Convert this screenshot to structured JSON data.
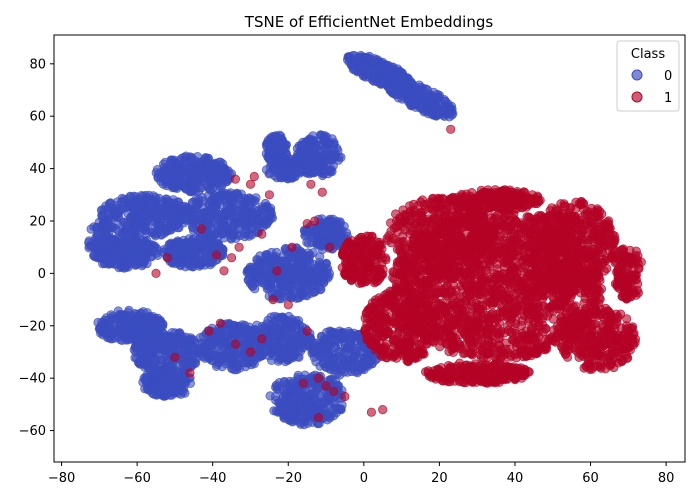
{
  "chart_data": {
    "type": "scatter",
    "title": "TSNE of EfficientNet Embeddings",
    "xlabel": "",
    "ylabel": "",
    "xlim": [
      -82,
      85
    ],
    "ylim": [
      -72,
      91
    ],
    "xticks": [
      -80,
      -60,
      -40,
      -20,
      0,
      20,
      40,
      60,
      80
    ],
    "yticks": [
      -60,
      -40,
      -20,
      0,
      20,
      40,
      60,
      80
    ],
    "grid": false,
    "legend": {
      "title": "Class",
      "placement": "top-right"
    },
    "series": [
      {
        "name": "0",
        "color": "#3b4cc0",
        "clusters": [
          {
            "cx": 4,
            "cy": 77,
            "rx": 10,
            "ry": 4,
            "angle": -35,
            "n": 260
          },
          {
            "cx": 15,
            "cy": 67,
            "rx": 11,
            "ry": 4,
            "angle": -38,
            "n": 220
          },
          {
            "cx": -45,
            "cy": 38,
            "rx": 10,
            "ry": 7,
            "angle": 0,
            "n": 260
          },
          {
            "cx": -58,
            "cy": 22,
            "rx": 12,
            "ry": 8,
            "angle": 0,
            "n": 300
          },
          {
            "cx": -36,
            "cy": 22,
            "rx": 12,
            "ry": 9,
            "angle": 0,
            "n": 320
          },
          {
            "cx": -63,
            "cy": 8,
            "rx": 9,
            "ry": 6,
            "angle": 0,
            "n": 220
          },
          {
            "cx": -45,
            "cy": 8,
            "rx": 8,
            "ry": 6,
            "angle": 0,
            "n": 200
          },
          {
            "cx": -23,
            "cy": 47,
            "rx": 3,
            "ry": 6,
            "angle": 0,
            "n": 90
          },
          {
            "cx": -12,
            "cy": 45,
            "rx": 6,
            "ry": 8,
            "angle": 0,
            "n": 180
          },
          {
            "cx": -21,
            "cy": 40,
            "rx": 5,
            "ry": 4,
            "angle": 0,
            "n": 90
          },
          {
            "cx": -20,
            "cy": 0,
            "rx": 11,
            "ry": 10,
            "angle": 0,
            "n": 340
          },
          {
            "cx": -10,
            "cy": 15,
            "rx": 6,
            "ry": 6,
            "angle": 0,
            "n": 140
          },
          {
            "cx": -62,
            "cy": -20,
            "rx": 9,
            "ry": 6,
            "angle": 0,
            "n": 220
          },
          {
            "cx": -52,
            "cy": -30,
            "rx": 9,
            "ry": 8,
            "angle": 0,
            "n": 240
          },
          {
            "cx": -52,
            "cy": -42,
            "rx": 7,
            "ry": 5,
            "angle": 0,
            "n": 160
          },
          {
            "cx": -35,
            "cy": -28,
            "rx": 9,
            "ry": 9,
            "angle": 0,
            "n": 260
          },
          {
            "cx": -22,
            "cy": -25,
            "rx": 8,
            "ry": 9,
            "angle": 0,
            "n": 240
          },
          {
            "cx": -15,
            "cy": -48,
            "rx": 10,
            "ry": 10,
            "angle": 0,
            "n": 280
          },
          {
            "cx": -5,
            "cy": -30,
            "rx": 9,
            "ry": 9,
            "angle": 0,
            "n": 240
          },
          {
            "cx": -70,
            "cy": 12,
            "rx": 3,
            "ry": 8,
            "angle": 0,
            "n": 60
          }
        ]
      },
      {
        "name": "1",
        "color": "#b40426",
        "clusters": [
          {
            "cx": 35,
            "cy": -5,
            "rx": 28,
            "ry": 28,
            "angle": 0,
            "n": 1800
          },
          {
            "cx": 20,
            "cy": 15,
            "rx": 14,
            "ry": 14,
            "angle": 0,
            "n": 420
          },
          {
            "cx": 55,
            "cy": 10,
            "rx": 12,
            "ry": 18,
            "angle": 0,
            "n": 460
          },
          {
            "cx": 10,
            "cy": -20,
            "rx": 10,
            "ry": 14,
            "angle": 0,
            "n": 360
          },
          {
            "cx": 62,
            "cy": -25,
            "rx": 10,
            "ry": 12,
            "angle": 0,
            "n": 300
          },
          {
            "cx": 35,
            "cy": 28,
            "rx": 12,
            "ry": 4,
            "angle": 0,
            "n": 220
          },
          {
            "cx": 30,
            "cy": -38,
            "rx": 14,
            "ry": 4,
            "angle": 0,
            "n": 240
          },
          {
            "cx": 0,
            "cy": 5,
            "rx": 6,
            "ry": 10,
            "angle": 0,
            "n": 200
          },
          {
            "cx": 70,
            "cy": 0,
            "rx": 4,
            "ry": 10,
            "angle": 0,
            "n": 120
          }
        ],
        "scatter": [
          {
            "x": -13,
            "y": 20
          },
          {
            "x": -15,
            "y": 19
          },
          {
            "x": -27,
            "y": 15
          },
          {
            "x": -33,
            "y": 10
          },
          {
            "x": -35,
            "y": 6
          },
          {
            "x": -37,
            "y": 1
          },
          {
            "x": -39,
            "y": 7
          },
          {
            "x": -43,
            "y": 17
          },
          {
            "x": -52,
            "y": 6
          },
          {
            "x": -55,
            "y": 0
          },
          {
            "x": -50,
            "y": -32
          },
          {
            "x": -46,
            "y": -38
          },
          {
            "x": -41,
            "y": -22
          },
          {
            "x": -38,
            "y": -19
          },
          {
            "x": -34,
            "y": -27
          },
          {
            "x": -30,
            "y": -30
          },
          {
            "x": -27,
            "y": -25
          },
          {
            "x": -24,
            "y": -10
          },
          {
            "x": -20,
            "y": -12
          },
          {
            "x": -15,
            "y": -22
          },
          {
            "x": -12,
            "y": -40
          },
          {
            "x": -10,
            "y": -43
          },
          {
            "x": -16,
            "y": -42
          },
          {
            "x": -8,
            "y": -45
          },
          {
            "x": -5,
            "y": -47
          },
          {
            "x": 2,
            "y": -53
          },
          {
            "x": 5,
            "y": -52
          },
          {
            "x": -12,
            "y": -55
          },
          {
            "x": -19,
            "y": 10
          },
          {
            "x": -23,
            "y": 1
          },
          {
            "x": -29,
            "y": 37
          },
          {
            "x": -34,
            "y": 36
          },
          {
            "x": -30,
            "y": 34
          },
          {
            "x": -14,
            "y": 34
          },
          {
            "x": -11,
            "y": 31
          },
          {
            "x": 23,
            "y": 55
          },
          {
            "x": -25,
            "y": 30
          },
          {
            "x": -9,
            "y": 10
          }
        ]
      }
    ]
  }
}
